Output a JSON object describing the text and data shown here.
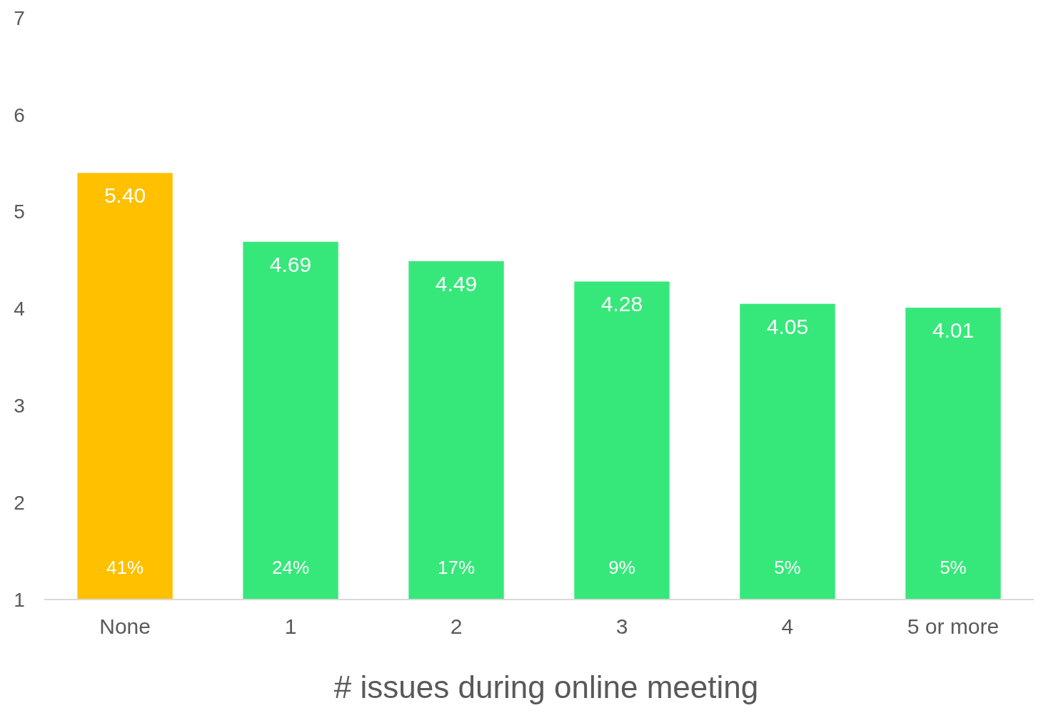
{
  "chart_data": {
    "type": "bar",
    "xlabel": "# issues during online meeting",
    "categories": [
      "None",
      "1",
      "2",
      "3",
      "4",
      "5 or more"
    ],
    "values": [
      5.4,
      4.69,
      4.49,
      4.28,
      4.05,
      4.01
    ],
    "colors": [
      "#ffc000",
      "#36e87a",
      "#36e87a",
      "#36e87a",
      "#36e87a",
      "#36e87a"
    ],
    "value_labels": [
      "5.40",
      "4.69",
      "4.49",
      "4.28",
      "4.05",
      "4.01"
    ],
    "ylim": [
      1,
      7
    ],
    "yticks": [
      1,
      2,
      3,
      4,
      5,
      6,
      7
    ],
    "grid": false,
    "annotations": [
      "41%",
      "24%",
      "17%",
      "9%",
      "5%",
      "5%"
    ]
  }
}
